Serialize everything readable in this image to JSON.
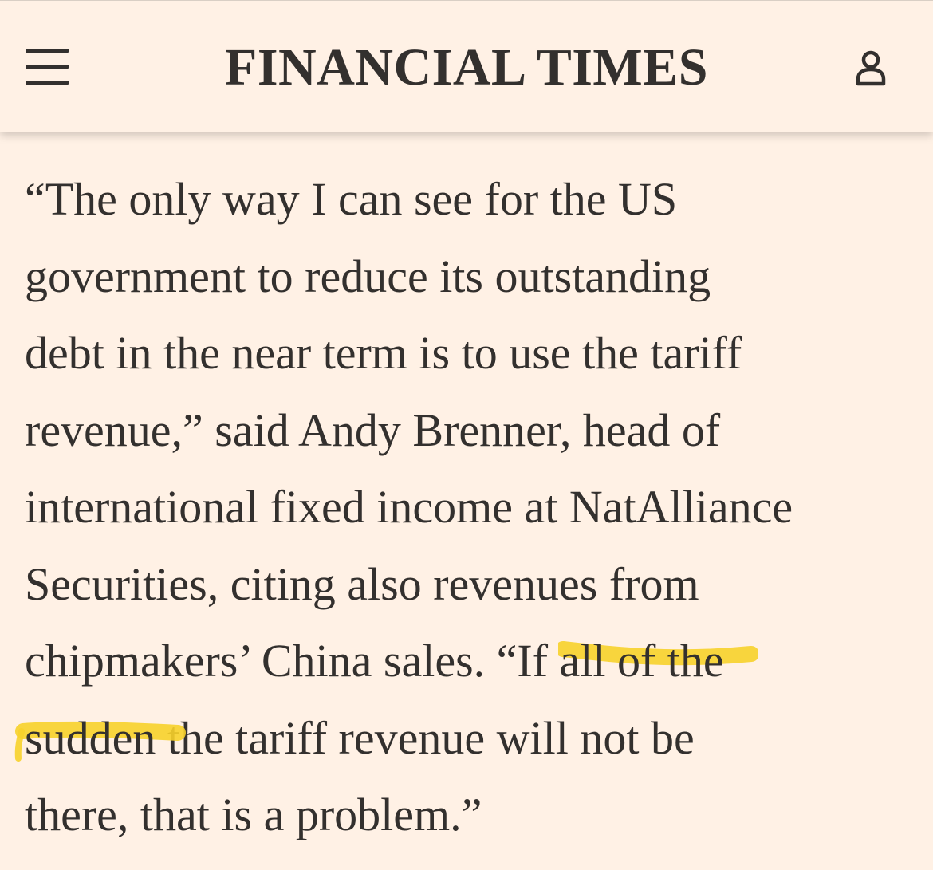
{
  "header": {
    "brand": "FINANCIAL TIMES",
    "menu_icon": "hamburger-menu-icon",
    "account_icon": "user-account-icon"
  },
  "article": {
    "lines": [
      "“The only way I can see for the US",
      "government to reduce its outstanding",
      "debt in the near term is to use the tariff",
      "revenue,” said Andy Brenner, head of",
      "international fixed income at NatAlliance",
      "Securities, citing also revenues from"
    ],
    "line7_before": "chipmakers’ China sales. “If ",
    "highlight_part1": "all of the",
    "highlight_part2": "sudden",
    "line8_after": " the tariff revenue will not be",
    "line9": "there, that is a problem.”"
  },
  "colors": {
    "background": "#fff1e5",
    "text": "#33302e",
    "highlight": "#f7d22a"
  }
}
